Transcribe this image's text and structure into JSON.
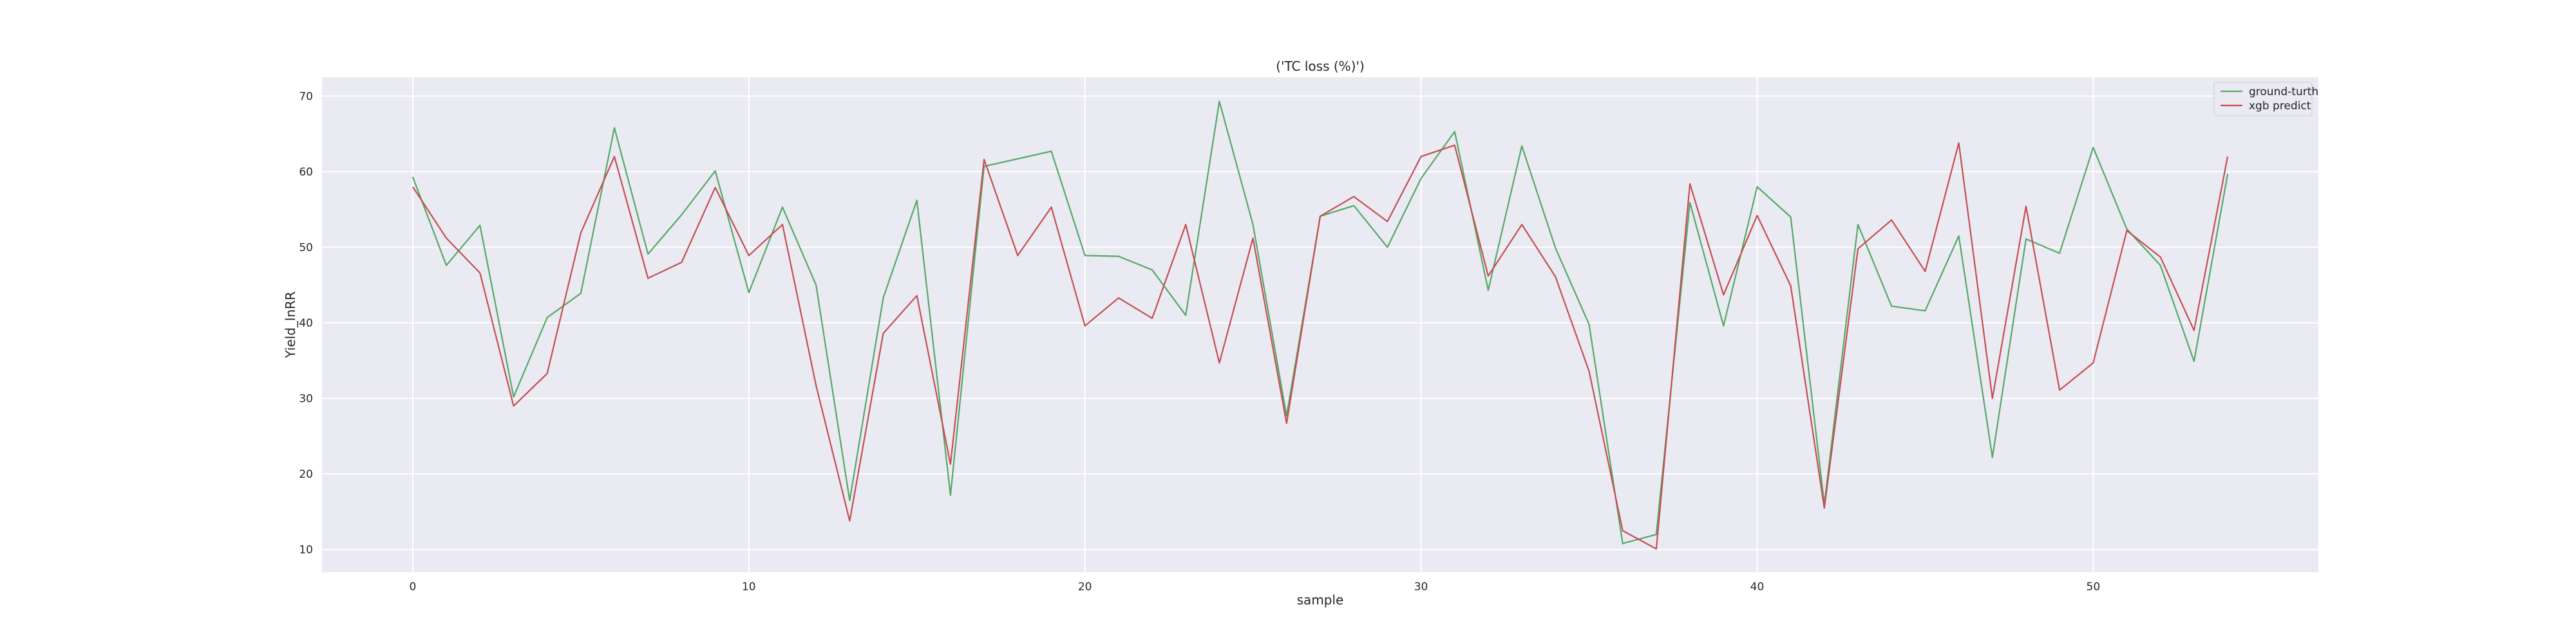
{
  "chart_data": {
    "type": "line",
    "title": "('TC loss (%)')",
    "xlabel": "sample",
    "ylabel": "Yield_lnRR",
    "xlim": [
      -2.7,
      56.7
    ],
    "ylim": [
      7.0,
      72.5
    ],
    "xticks": [
      0,
      10,
      20,
      30,
      40,
      50
    ],
    "yticks": [
      10,
      20,
      30,
      40,
      50,
      60,
      70
    ],
    "grid": true,
    "legend_position": "top-right",
    "background_color": "#eaeaf2",
    "x": [
      0,
      1,
      2,
      3,
      4,
      5,
      6,
      7,
      8,
      9,
      10,
      11,
      12,
      13,
      14,
      15,
      16,
      17,
      18,
      19,
      20,
      21,
      22,
      23,
      24,
      25,
      26,
      27,
      28,
      29,
      30,
      31,
      32,
      33,
      34,
      35,
      36,
      37,
      38,
      39,
      40,
      41,
      42,
      43,
      44,
      45,
      46,
      47,
      48,
      49,
      50,
      51,
      52,
      53,
      54
    ],
    "series": [
      {
        "name": "ground-turth",
        "color": "#55a868",
        "values": [
          59.3,
          47.6,
          52.9,
          30.2,
          40.7,
          43.9,
          65.8,
          49.1,
          54.3,
          60.1,
          44.0,
          55.3,
          45.0,
          16.5,
          43.3,
          56.2,
          17.2,
          60.7,
          61.7,
          62.7,
          48.9,
          48.8,
          47.0,
          41.0,
          69.3,
          53.0,
          27.7,
          54.1,
          55.5,
          50.0,
          59.1,
          65.3,
          44.3,
          63.4,
          49.9,
          39.8,
          10.8,
          12.0,
          55.9,
          39.6,
          58.0,
          54.0,
          16.0,
          53.0,
          42.2,
          41.6,
          51.5,
          22.2,
          51.1,
          49.2,
          63.2,
          52.4,
          47.6,
          34.9,
          59.7
        ]
      },
      {
        "name": "xgb predict",
        "color": "#c44e52",
        "values": [
          58.0,
          51.2,
          46.6,
          29.0,
          33.3,
          51.9,
          62.0,
          45.9,
          48.0,
          57.9,
          48.9,
          53.0,
          31.7,
          13.8,
          38.6,
          43.6,
          21.3,
          61.6,
          48.9,
          55.3,
          39.6,
          43.3,
          40.6,
          53.0,
          34.7,
          51.2,
          26.7,
          54.1,
          56.7,
          53.4,
          62.0,
          63.5,
          46.2,
          53.0,
          46.1,
          33.6,
          12.5,
          10.1,
          58.4,
          43.7,
          54.2,
          44.9,
          15.5,
          49.8,
          53.6,
          46.8,
          63.8,
          30.0,
          55.4,
          31.1,
          34.7,
          52.2,
          48.7,
          39.0,
          62.0
        ]
      }
    ]
  }
}
